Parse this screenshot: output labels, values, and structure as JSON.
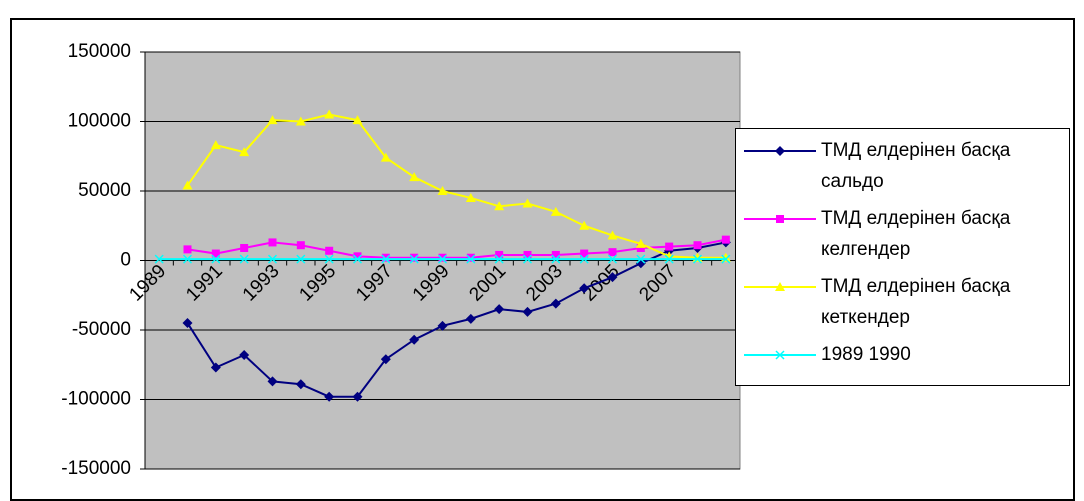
{
  "chart_data": {
    "type": "line",
    "categories": [
      "1989",
      null,
      "1991",
      null,
      "1993",
      null,
      "1995",
      null,
      "1997",
      null,
      "1999",
      null,
      "2001",
      null,
      "2003",
      null,
      "2005",
      null,
      "2007",
      null,
      null
    ],
    "series": [
      {
        "name": "ТМД елдерінен басқа сальдо",
        "color": "#000080",
        "marker": "diamond",
        "values": [
          null,
          -45000,
          -77000,
          -68000,
          -87000,
          -89000,
          -98000,
          -98000,
          -71000,
          -57000,
          -47000,
          -42000,
          -35000,
          -37000,
          -31000,
          -20000,
          -12000,
          -2000,
          7000,
          9000,
          13000
        ]
      },
      {
        "name": "ТМД елдерінен басқа келгендер",
        "color": "#ff00ff",
        "marker": "square",
        "values": [
          null,
          8000,
          5000,
          9000,
          13000,
          11000,
          7000,
          3000,
          2000,
          2000,
          2000,
          2000,
          4000,
          4000,
          4000,
          5000,
          6000,
          9000,
          10000,
          11000,
          15000
        ]
      },
      {
        "name": "ТМД елдерінен басқа кеткендер",
        "color": "#ffff00",
        "marker": "triangle",
        "values": [
          null,
          54000,
          83000,
          78000,
          101000,
          100000,
          105000,
          101000,
          74000,
          60000,
          50000,
          45000,
          39000,
          41000,
          35000,
          25000,
          18000,
          12000,
          3000,
          2000,
          2000
        ]
      },
      {
        "name": "1989 1990",
        "color": "#00ffff",
        "marker": "x",
        "values": [
          1000,
          1000,
          1000,
          1000,
          1000,
          1000,
          1000,
          1000,
          1000,
          1000,
          1000,
          1000,
          1000,
          1000,
          1000,
          1000,
          1000,
          1000,
          1000,
          1000,
          1000
        ]
      }
    ],
    "ylim": [
      -150000,
      150000
    ],
    "yticks": [
      -150000,
      -100000,
      -50000,
      0,
      50000,
      100000,
      150000
    ],
    "grid": true,
    "legend": "right"
  }
}
